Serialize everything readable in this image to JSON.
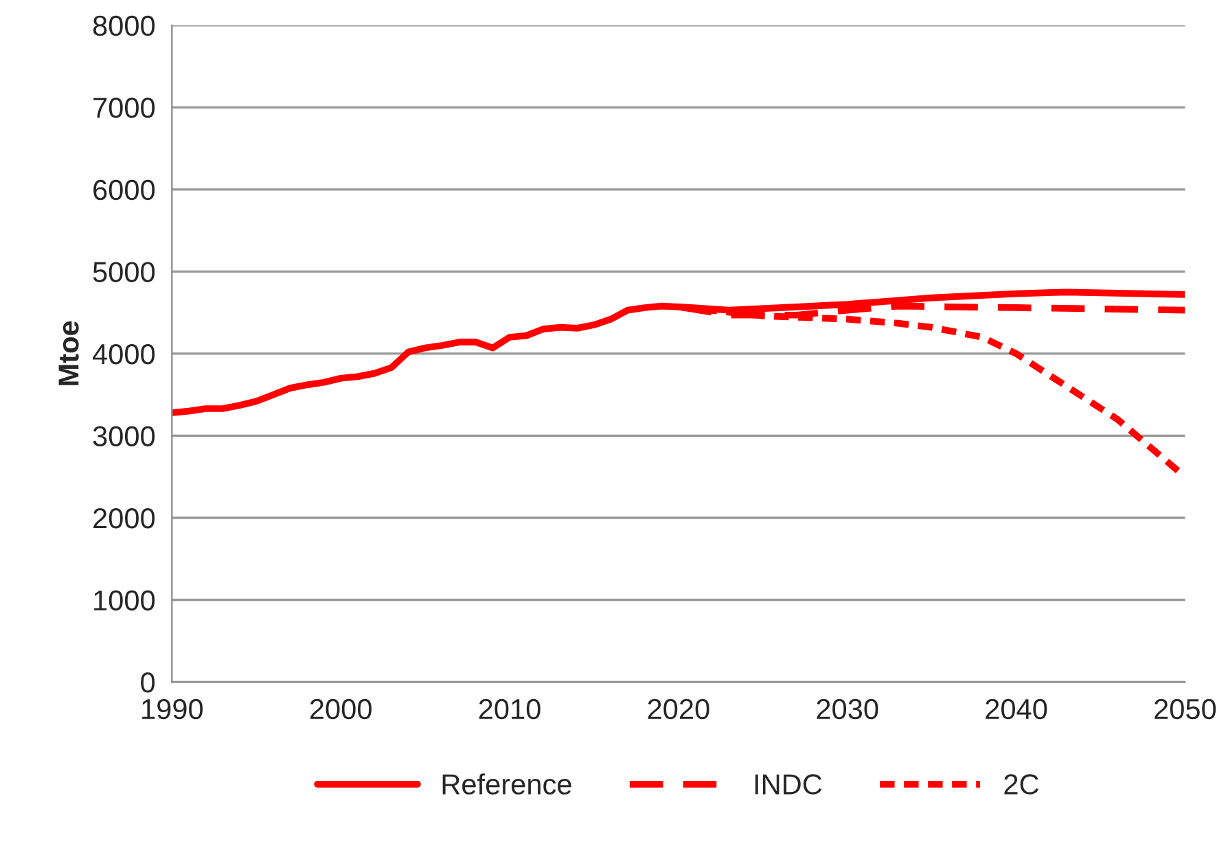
{
  "chart_data": {
    "type": "line",
    "ylabel": "Mtoe",
    "xlim": [
      1990,
      2050
    ],
    "xticks": [
      1990,
      2000,
      2010,
      2020,
      2030,
      2040,
      2050
    ],
    "ylim": [
      0,
      8000
    ],
    "yticks": [
      0,
      1000,
      2000,
      3000,
      4000,
      5000,
      6000,
      7000,
      8000
    ],
    "grid": "y",
    "legend": "bottom",
    "marker": "none",
    "series": [
      {
        "name": "Reference",
        "color": "#ff0000",
        "line_style": "solid",
        "x": [
          1990,
          1991,
          1992,
          1993,
          1994,
          1995,
          1996,
          1997,
          1998,
          1999,
          2000,
          2001,
          2002,
          2003,
          2004,
          2005,
          2006,
          2007,
          2008,
          2009,
          2010,
          2011,
          2012,
          2013,
          2014,
          2015,
          2016,
          2017,
          2018,
          2019,
          2020,
          2023,
          2027,
          2030,
          2035,
          2040,
          2043,
          2050
        ],
        "values": [
          3280,
          3300,
          3330,
          3330,
          3370,
          3420,
          3500,
          3580,
          3620,
          3650,
          3700,
          3720,
          3760,
          3830,
          4020,
          4070,
          4100,
          4140,
          4140,
          4070,
          4200,
          4220,
          4300,
          4320,
          4310,
          4350,
          4420,
          4530,
          4560,
          4580,
          4570,
          4530,
          4570,
          4600,
          4680,
          4730,
          4750,
          4720
        ]
      },
      {
        "name": "INDC",
        "color": "#ff0000",
        "line_style": "dashed",
        "x": [
          2020,
          2023,
          2027,
          2030,
          2033,
          2036,
          2040,
          2050
        ],
        "values": [
          4570,
          4470,
          4470,
          4530,
          4580,
          4570,
          4560,
          4530
        ]
      },
      {
        "name": "2C",
        "color": "#ff0000",
        "line_style": "dotted",
        "x": [
          2020,
          2025,
          2030,
          2033,
          2035,
          2038,
          2040,
          2043,
          2046,
          2050
        ],
        "values": [
          4570,
          4460,
          4420,
          4370,
          4320,
          4200,
          4000,
          3600,
          3200,
          2500
        ]
      }
    ]
  }
}
